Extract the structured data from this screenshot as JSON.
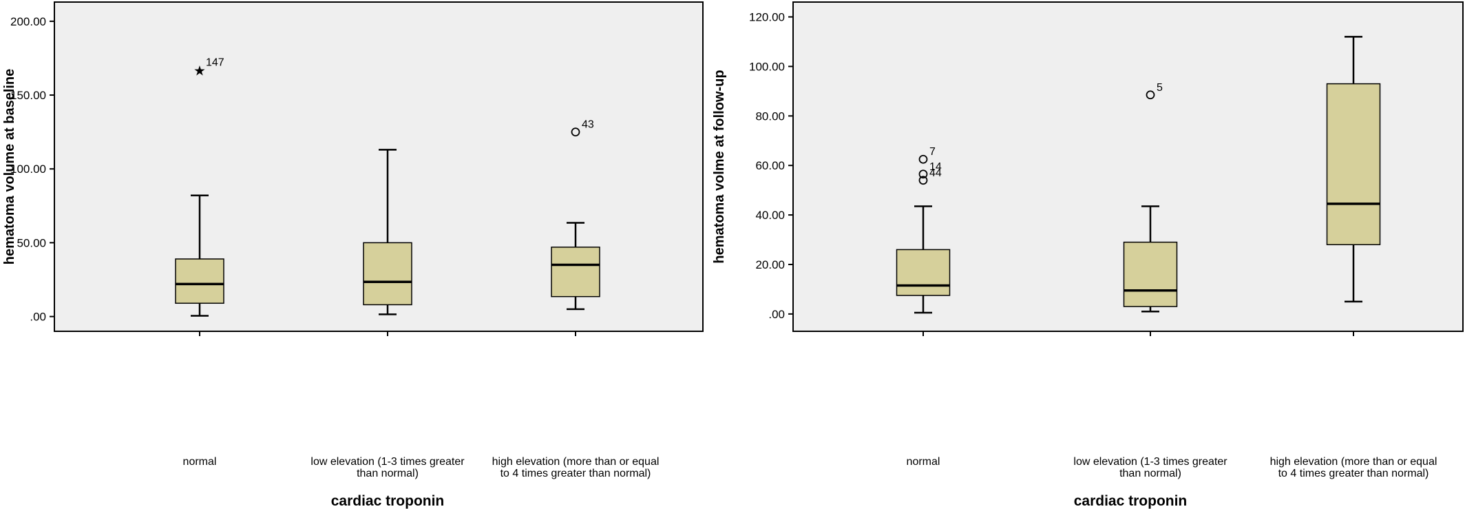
{
  "chart_data": [
    {
      "type": "boxplot",
      "xlabel": "cardiac troponin",
      "ylabel": "hematoma volume at baseline",
      "ylim": [
        -10,
        213
      ],
      "yticks": [
        0,
        50,
        100,
        150,
        200
      ],
      "ytick_labels": [
        ".00",
        "50.00",
        "100.00",
        "150.00",
        "200.00"
      ],
      "grid": false,
      "box_color": "#d6d09b",
      "categories": [
        [
          "normal"
        ],
        [
          "low elevation (1-3 times greater",
          "than normal)"
        ],
        [
          "high elevation (more than or equal",
          "to 4 times greater than normal)"
        ]
      ],
      "boxes": [
        {
          "min": 0.5,
          "q1": 9,
          "median": 22,
          "q3": 39,
          "max": 82
        },
        {
          "min": 1.5,
          "q1": 8,
          "median": 23.5,
          "q3": 50,
          "max": 113
        },
        {
          "min": 5,
          "q1": 13.5,
          "median": 35,
          "q3": 47,
          "max": 63.5
        }
      ],
      "outliers": [
        {
          "box": 0,
          "value": 167,
          "label": "147",
          "marker": "star"
        },
        {
          "box": 2,
          "value": 125,
          "label": "43",
          "marker": "circle"
        }
      ]
    },
    {
      "type": "boxplot",
      "xlabel": "cardiac troponin",
      "ylabel": "hematoma volme at follow-up",
      "ylim": [
        -7,
        126
      ],
      "yticks": [
        0,
        20,
        40,
        60,
        80,
        100,
        120
      ],
      "ytick_labels": [
        ".00",
        "20.00",
        "40.00",
        "60.00",
        "80.00",
        "100.00",
        "120.00"
      ],
      "grid": false,
      "box_color": "#d6d09b",
      "categories": [
        [
          "normal"
        ],
        [
          "low elevation (1-3 times greater",
          "than normal)"
        ],
        [
          "high elevation (more than or equal",
          "to 4 times greater than normal)"
        ]
      ],
      "boxes": [
        {
          "min": 0.5,
          "q1": 7.5,
          "median": 11.5,
          "q3": 26,
          "max": 43.5
        },
        {
          "min": 1,
          "q1": 3,
          "median": 9.5,
          "q3": 29,
          "max": 43.5
        },
        {
          "min": 5,
          "q1": 28,
          "median": 44.5,
          "q3": 93,
          "max": 112
        }
      ],
      "outliers": [
        {
          "box": 0,
          "value": 62.5,
          "label": "7",
          "marker": "circle"
        },
        {
          "box": 0,
          "value": 56.5,
          "label": "14",
          "marker": "circle"
        },
        {
          "box": 0,
          "value": 54,
          "label": "44",
          "marker": "circle"
        },
        {
          "box": 1,
          "value": 88.5,
          "label": "5",
          "marker": "circle"
        }
      ]
    }
  ]
}
